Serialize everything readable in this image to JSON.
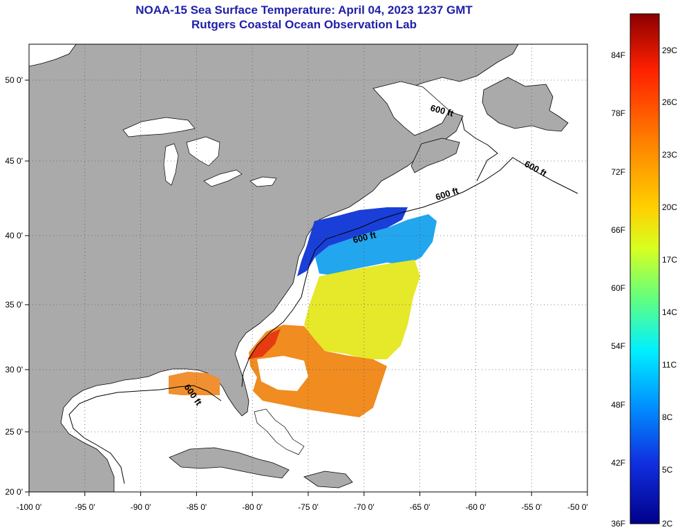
{
  "title": {
    "line1": "NOAA-15 Sea Surface Temperature:  April 04, 2023 1237 GMT",
    "line2": "Rutgers Coastal Ocean Observation Lab"
  },
  "map": {
    "x_ticks": [
      "-100 0'",
      "-95 0'",
      "-90 0'",
      "-85 0'",
      "-80 0'",
      "-75 0'",
      "-70 0'",
      "-65 0'",
      "-60 0'",
      "-55 0'",
      "-50 0'"
    ],
    "y_ticks": [
      "50 0'",
      "45 0'",
      "40 0'",
      "35 0'",
      "30 0'",
      "25 0'",
      "20 0'"
    ],
    "contour_labels": [
      "600 ft",
      "600 ft",
      "600 ft",
      "600 ft",
      "600 ft"
    ],
    "colors": {
      "land": "#aaaaaa",
      "water": "#ffffff",
      "grid": "#555555",
      "title": "#1f20a8"
    }
  },
  "colorbar": {
    "fahrenheit": [
      "84F",
      "78F",
      "72F",
      "66F",
      "60F",
      "54F",
      "48F",
      "42F",
      "36F"
    ],
    "celsius": [
      "29C",
      "26C",
      "23C",
      "20C",
      "17C",
      "14C",
      "11C",
      "8C",
      "5C",
      "2C"
    ],
    "gradient": [
      "#8b0000",
      "#ff2000",
      "#ff8000",
      "#ffd000",
      "#d8ff20",
      "#60ff80",
      "#00f0ff",
      "#0090ff",
      "#1030e0",
      "#00008b"
    ]
  }
}
